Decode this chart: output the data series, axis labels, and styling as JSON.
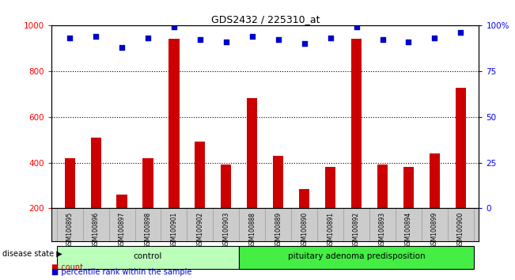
{
  "title": "GDS2432 / 225310_at",
  "samples": [
    "GSM100895",
    "GSM100896",
    "GSM100897",
    "GSM100898",
    "GSM100901",
    "GSM100902",
    "GSM100903",
    "GSM100888",
    "GSM100889",
    "GSM100890",
    "GSM100891",
    "GSM100892",
    "GSM100893",
    "GSM100894",
    "GSM100899",
    "GSM100900"
  ],
  "counts": [
    420,
    510,
    260,
    420,
    940,
    490,
    390,
    680,
    430,
    285,
    380,
    940,
    390,
    380,
    440,
    725
  ],
  "percentiles": [
    93,
    94,
    88,
    93,
    99,
    92,
    91,
    94,
    92,
    90,
    93,
    99,
    92,
    91,
    93,
    96
  ],
  "groups": [
    {
      "label": "control",
      "start": 0,
      "end": 7,
      "color": "#bbffbb"
    },
    {
      "label": "pituitary adenoma predisposition",
      "start": 7,
      "end": 16,
      "color": "#44ee44"
    }
  ],
  "ylim_left": [
    200,
    1000
  ],
  "ylim_right": [
    0,
    100
  ],
  "yticks_left": [
    200,
    400,
    600,
    800,
    1000
  ],
  "yticks_right": [
    0,
    25,
    50,
    75,
    100
  ],
  "yticklabels_right": [
    "0",
    "25",
    "50",
    "75",
    "100%"
  ],
  "bar_color": "#cc0000",
  "dot_color": "#0000cc",
  "legend_items": [
    {
      "label": "count",
      "color": "#cc0000"
    },
    {
      "label": "percentile rank within the sample",
      "color": "#0000cc"
    }
  ],
  "label_box_color": "#cccccc",
  "label_box_edge": "#999999"
}
